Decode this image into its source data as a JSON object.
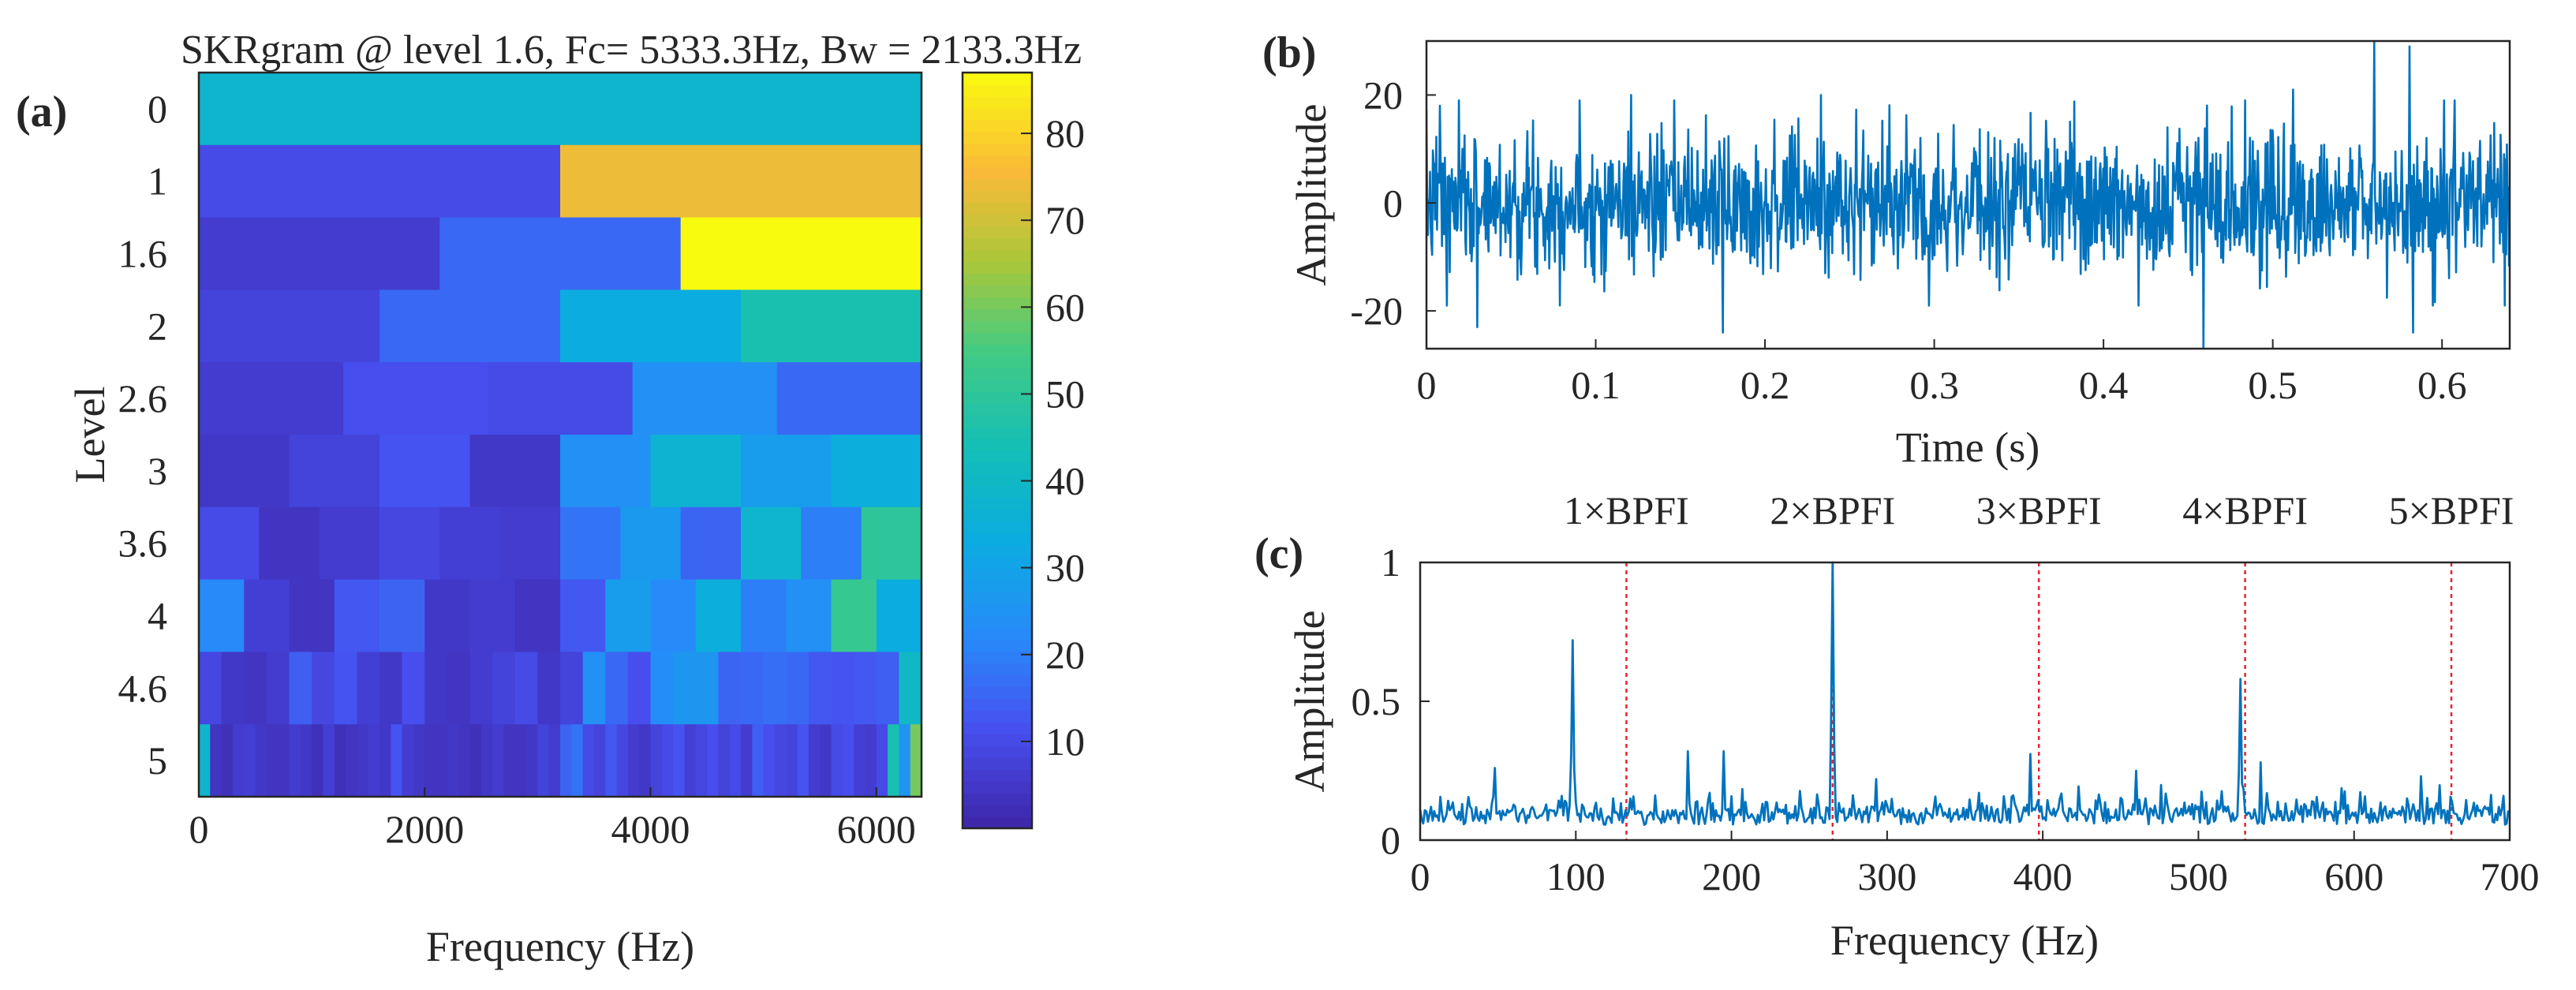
{
  "chart_data": [
    {
      "panel": "(a)",
      "type": "heatmap",
      "title": "SKRgram @ level 1.6, Fc= 5333.3Hz, Bw = 2133.3Hz",
      "xlabel": "Frequency (Hz)",
      "ylabel": "Level",
      "xlim": [
        0,
        6400
      ],
      "x_ticks": [
        "0",
        "2000",
        "4000",
        "6000"
      ],
      "level_labels": [
        "0",
        "1",
        "1.6",
        "2",
        "2.6",
        "3",
        "3.6",
        "4",
        "4.6",
        "5"
      ],
      "colorbar": {
        "range": [
          0,
          87
        ],
        "ticks": [
          "10",
          "20",
          "30",
          "40",
          "50",
          "60",
          "70",
          "80"
        ]
      },
      "rows": [
        [
          38
        ],
        [
          10,
          74
        ],
        [
          6,
          16,
          87
        ],
        [
          8,
          16,
          33,
          45
        ],
        [
          6,
          11,
          10,
          24,
          16
        ],
        [
          5,
          8,
          12,
          5,
          24,
          37,
          28,
          34
        ],
        [
          10,
          4,
          6,
          9,
          7,
          6,
          18,
          27,
          15,
          38,
          20,
          50
        ],
        [
          22,
          7,
          4,
          13,
          15,
          5,
          6,
          4,
          13,
          28,
          22,
          34,
          20,
          24,
          52,
          33
        ],
        [
          9,
          5,
          4,
          6,
          14,
          9,
          12,
          7,
          5,
          11,
          5,
          4,
          6,
          8,
          10,
          5,
          8,
          24,
          16,
          11,
          23,
          26,
          26,
          15,
          16,
          17,
          16,
          13,
          12,
          13,
          14,
          40
        ],
        [
          38,
          4,
          3,
          6,
          7,
          5,
          4,
          4,
          6,
          5,
          3,
          7,
          3,
          4,
          5,
          6,
          5,
          12,
          6,
          5,
          4,
          4,
          5,
          4,
          3,
          5,
          6,
          4,
          4,
          5,
          8,
          6,
          15,
          18,
          10,
          8,
          13,
          9,
          6,
          5,
          8,
          10,
          12,
          7,
          9,
          11,
          8,
          10,
          6,
          14,
          11,
          9,
          8,
          12,
          6,
          5,
          10,
          11,
          7,
          6,
          10,
          45,
          25,
          60
        ]
      ]
    },
    {
      "panel": "(b)",
      "type": "line",
      "xlabel": "Time (s)",
      "ylabel": "Amplitude",
      "xlim": [
        0,
        0.64
      ],
      "ylim": [
        -27,
        30
      ],
      "x_ticks": [
        "0",
        "0.1",
        "0.2",
        "0.3",
        "0.4",
        "0.5",
        "0.6"
      ],
      "y_ticks": [
        "-20",
        "0",
        "20"
      ],
      "color": "#0072BD",
      "samples": 1536,
      "noise_std": 6.3,
      "extremes": [
        {
          "x": 0.008,
          "y": 18
        },
        {
          "x": 0.012,
          "y": -19
        },
        {
          "x": 0.03,
          "y": -23
        },
        {
          "x": 0.121,
          "y": 20
        },
        {
          "x": 0.175,
          "y": -24
        },
        {
          "x": 0.233,
          "y": 20
        },
        {
          "x": 0.459,
          "y": -27
        },
        {
          "x": 0.512,
          "y": 21
        },
        {
          "x": 0.56,
          "y": 30
        },
        {
          "x": 0.581,
          "y": 29
        },
        {
          "x": 0.583,
          "y": -24
        }
      ]
    },
    {
      "panel": "(c)",
      "type": "line",
      "xlabel": "Frequency (Hz)",
      "ylabel": "Amplitude",
      "xlim": [
        0,
        700
      ],
      "ylim": [
        0,
        1
      ],
      "x_ticks": [
        "0",
        "100",
        "200",
        "300",
        "400",
        "500",
        "600",
        "700"
      ],
      "y_ticks": [
        "0",
        "0.5",
        "1"
      ],
      "color": "#0072BD",
      "marker_color": "#E3262E",
      "markers": [
        {
          "label": "1×BPFI",
          "x": 132.5
        },
        {
          "label": "2×BPFI",
          "x": 265
        },
        {
          "label": "3×BPFI",
          "x": 397.5
        },
        {
          "label": "4×BPFI",
          "x": 530
        },
        {
          "label": "5×BPFI",
          "x": 662.5
        }
      ],
      "peaks": [
        {
          "x": 48,
          "y": 0.26
        },
        {
          "x": 98,
          "y": 0.72
        },
        {
          "x": 172,
          "y": 0.32
        },
        {
          "x": 195,
          "y": 0.32
        },
        {
          "x": 265,
          "y": 1.0
        },
        {
          "x": 293,
          "y": 0.22
        },
        {
          "x": 392,
          "y": 0.31
        },
        {
          "x": 460,
          "y": 0.25
        },
        {
          "x": 527,
          "y": 0.58
        },
        {
          "x": 540,
          "y": 0.28
        },
        {
          "x": 643,
          "y": 0.23
        }
      ]
    }
  ]
}
